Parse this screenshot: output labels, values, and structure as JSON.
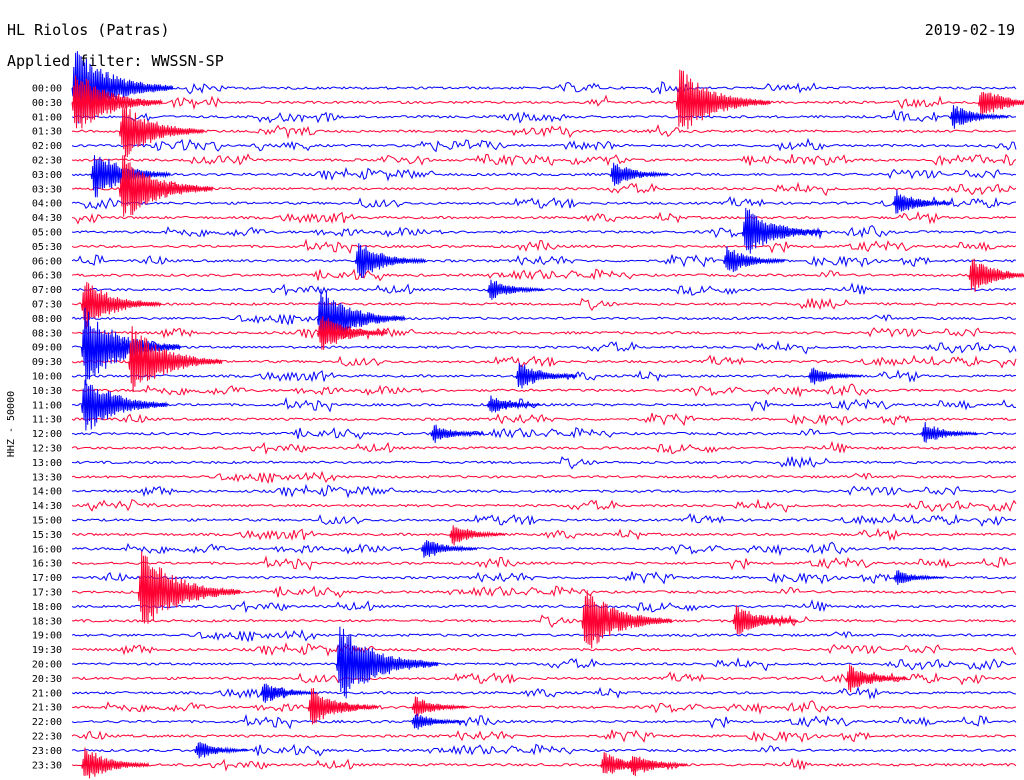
{
  "chart_data": {
    "type": "line",
    "title": "HL Riolos (Patras)",
    "subtitle": "Applied filter: WWSSN-SP",
    "date": "2019-02-19",
    "ylabel": "HHZ - 50000",
    "trace_colors": [
      "#0000ff",
      "#ff0033"
    ],
    "row_labels": [
      "00:00",
      "00:30",
      "01:00",
      "01:30",
      "02:00",
      "02:30",
      "03:00",
      "03:30",
      "04:00",
      "04:30",
      "05:00",
      "05:30",
      "06:00",
      "06:30",
      "07:00",
      "07:30",
      "08:00",
      "08:30",
      "09:00",
      "09:30",
      "10:00",
      "10:30",
      "11:00",
      "11:30",
      "12:00",
      "12:30",
      "13:00",
      "13:30",
      "14:00",
      "14:30",
      "15:00",
      "15:30",
      "16:00",
      "16:30",
      "17:00",
      "17:30",
      "18:00",
      "18:30",
      "19:00",
      "19:30",
      "20:00",
      "20:30",
      "21:00",
      "21:30",
      "22:00",
      "22:30",
      "23:00",
      "23:30"
    ],
    "events": [
      {
        "row": 0,
        "t": 0.0,
        "amp": 45
      },
      {
        "row": 1,
        "t": 0.64,
        "amp": 40
      },
      {
        "row": 1,
        "t": 0.0,
        "amp": 38
      },
      {
        "row": 1,
        "t": 0.96,
        "amp": 20
      },
      {
        "row": 2,
        "t": 0.93,
        "amp": 16
      },
      {
        "row": 3,
        "t": 0.05,
        "amp": 34
      },
      {
        "row": 6,
        "t": 0.57,
        "amp": 16
      },
      {
        "row": 6,
        "t": 0.02,
        "amp": 30
      },
      {
        "row": 7,
        "t": 0.05,
        "amp": 40
      },
      {
        "row": 8,
        "t": 0.87,
        "amp": 16
      },
      {
        "row": 10,
        "t": 0.71,
        "amp": 30
      },
      {
        "row": 12,
        "t": 0.3,
        "amp": 24
      },
      {
        "row": 12,
        "t": 0.69,
        "amp": 18
      },
      {
        "row": 13,
        "t": 0.95,
        "amp": 22
      },
      {
        "row": 14,
        "t": 0.44,
        "amp": 14
      },
      {
        "row": 15,
        "t": 0.01,
        "amp": 30
      },
      {
        "row": 16,
        "t": 0.26,
        "amp": 36
      },
      {
        "row": 17,
        "t": 0.26,
        "amp": 24
      },
      {
        "row": 18,
        "t": 0.01,
        "amp": 44
      },
      {
        "row": 19,
        "t": 0.06,
        "amp": 40
      },
      {
        "row": 20,
        "t": 0.47,
        "amp": 18
      },
      {
        "row": 20,
        "t": 0.78,
        "amp": 12
      },
      {
        "row": 22,
        "t": 0.44,
        "amp": 12
      },
      {
        "row": 22,
        "t": 0.01,
        "amp": 35
      },
      {
        "row": 24,
        "t": 0.38,
        "amp": 12
      },
      {
        "row": 24,
        "t": 0.9,
        "amp": 14
      },
      {
        "row": 31,
        "t": 0.4,
        "amp": 14
      },
      {
        "row": 32,
        "t": 0.37,
        "amp": 14
      },
      {
        "row": 34,
        "t": 0.87,
        "amp": 10
      },
      {
        "row": 35,
        "t": 0.07,
        "amp": 46
      },
      {
        "row": 37,
        "t": 0.54,
        "amp": 38
      },
      {
        "row": 37,
        "t": 0.7,
        "amp": 20
      },
      {
        "row": 40,
        "t": 0.28,
        "amp": 46
      },
      {
        "row": 41,
        "t": 0.82,
        "amp": 18
      },
      {
        "row": 42,
        "t": 0.2,
        "amp": 14
      },
      {
        "row": 43,
        "t": 0.25,
        "amp": 24
      },
      {
        "row": 43,
        "t": 0.36,
        "amp": 14
      },
      {
        "row": 44,
        "t": 0.36,
        "amp": 12
      },
      {
        "row": 46,
        "t": 0.13,
        "amp": 12
      },
      {
        "row": 47,
        "t": 0.01,
        "amp": 22
      },
      {
        "row": 47,
        "t": 0.56,
        "amp": 16
      },
      {
        "row": 47,
        "t": 0.59,
        "amp": 16
      }
    ]
  }
}
